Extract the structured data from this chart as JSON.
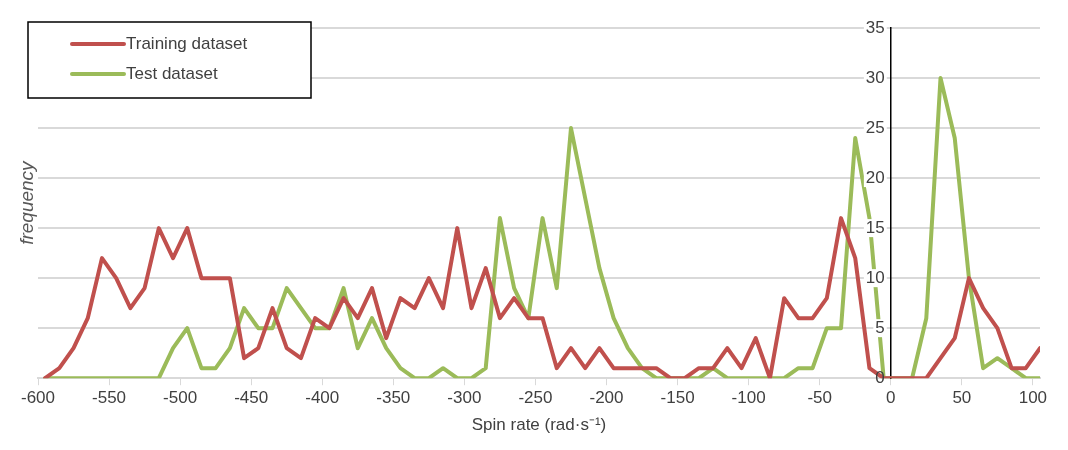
{
  "chart_data": {
    "type": "line",
    "xlabel": "Spin rate (rad·s⁻¹)",
    "ylabel": "frequency",
    "x": [
      -595,
      -585,
      -575,
      -565,
      -555,
      -545,
      -535,
      -525,
      -515,
      -505,
      -495,
      -485,
      -475,
      -465,
      -455,
      -445,
      -435,
      -425,
      -415,
      -405,
      -395,
      -385,
      -375,
      -365,
      -355,
      -345,
      -335,
      -325,
      -315,
      -305,
      -295,
      -285,
      -275,
      -265,
      -255,
      -245,
      -235,
      -225,
      -215,
      -205,
      -195,
      -185,
      -175,
      -165,
      -155,
      -145,
      -135,
      -125,
      -115,
      -105,
      -95,
      -85,
      -75,
      -65,
      -55,
      -45,
      -35,
      -25,
      -15,
      -5,
      5,
      15,
      25,
      35,
      45,
      55,
      65,
      75,
      85,
      95,
      105
    ],
    "series": [
      {
        "name": "Training dataset",
        "color": "#c0504d",
        "values": [
          0,
          1,
          3,
          6,
          12,
          10,
          7,
          9,
          15,
          12,
          15,
          10,
          10,
          10,
          2,
          3,
          7,
          3,
          2,
          6,
          5,
          8,
          6,
          9,
          4,
          8,
          7,
          10,
          7,
          15,
          7,
          11,
          6,
          8,
          6,
          6,
          1,
          3,
          1,
          3,
          1,
          1,
          1,
          1,
          0,
          0,
          1,
          1,
          3,
          1,
          4,
          0,
          8,
          6,
          6,
          8,
          16,
          12,
          1,
          0,
          0,
          0,
          0,
          2,
          4,
          10,
          7,
          5,
          1,
          1,
          3
        ]
      },
      {
        "name": "Test dataset",
        "color": "#9bbb59",
        "values": [
          0,
          0,
          0,
          0,
          0,
          0,
          0,
          0,
          0,
          3,
          5,
          1,
          1,
          3,
          7,
          5,
          5,
          9,
          7,
          5,
          5,
          9,
          3,
          6,
          3,
          1,
          0,
          0,
          1,
          0,
          0,
          1,
          16,
          9,
          6,
          16,
          9,
          25,
          18,
          11,
          6,
          3,
          1,
          0,
          0,
          0,
          0,
          1,
          0,
          0,
          0,
          0,
          0,
          1,
          1,
          5,
          5,
          24,
          16,
          0,
          0,
          0,
          6,
          30,
          24,
          10,
          1,
          2,
          1,
          0,
          0
        ]
      }
    ],
    "xlim": [
      -600,
      105
    ],
    "xticks": [
      -600,
      -550,
      -500,
      -450,
      -400,
      -350,
      -300,
      -250,
      -200,
      -150,
      -100,
      -50,
      0,
      50,
      100
    ],
    "ylim": [
      0,
      35
    ],
    "yticks": [
      0,
      5,
      10,
      15,
      20,
      25,
      30,
      35
    ],
    "grid": "y",
    "legend": "top left",
    "marker": "none",
    "line_style": "solid"
  }
}
